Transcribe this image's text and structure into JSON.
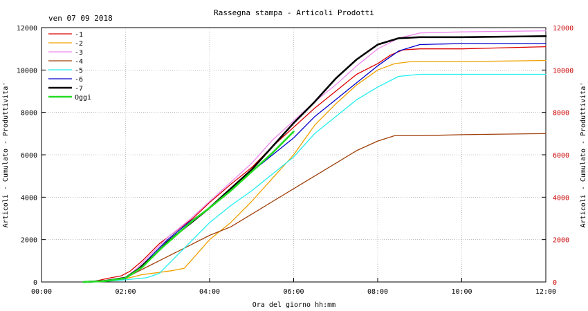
{
  "chart_data": {
    "type": "line",
    "title": "Rassegna stampa - Articoli Prodotti",
    "date_label": "ven 07 09 2018",
    "xlabel": "Ora del giorno hh:mm",
    "ylabel": "Articoli - Cumulato - Produttivita'",
    "ylabel_right": "Articoli - Cumulato - Produttivita'",
    "xlim": [
      0,
      12
    ],
    "ylim": [
      0,
      12000
    ],
    "x_ticks": [
      {
        "value": 0,
        "label": "00:00"
      },
      {
        "value": 2,
        "label": "02:00"
      },
      {
        "value": 4,
        "label": "04:00"
      },
      {
        "value": 6,
        "label": "06:00"
      },
      {
        "value": 8,
        "label": "08:00"
      },
      {
        "value": 10,
        "label": "10:00"
      },
      {
        "value": 12,
        "label": "12:00"
      }
    ],
    "y_ticks": [
      {
        "value": 0,
        "label": "0"
      },
      {
        "value": 2000,
        "label": "2000"
      },
      {
        "value": 4000,
        "label": "4000"
      },
      {
        "value": 6000,
        "label": "6000"
      },
      {
        "value": 8000,
        "label": "8000"
      },
      {
        "value": 10000,
        "label": "10000"
      },
      {
        "value": 12000,
        "label": "12000"
      }
    ],
    "grid": true,
    "legend_position": "top-left",
    "right_axis_color": "#cc0000",
    "series": [
      {
        "name": "-1",
        "color": "#dd0000",
        "width": 1.3,
        "points": [
          [
            1.0,
            0
          ],
          [
            1.3,
            50
          ],
          [
            1.6,
            180
          ],
          [
            1.9,
            290
          ],
          [
            2.1,
            500
          ],
          [
            2.4,
            1000
          ],
          [
            2.8,
            1800
          ],
          [
            3.2,
            2400
          ],
          [
            3.6,
            3000
          ],
          [
            4.0,
            3750
          ],
          [
            4.5,
            4600
          ],
          [
            5.0,
            5400
          ],
          [
            5.5,
            6400
          ],
          [
            6.0,
            7300
          ],
          [
            6.5,
            8200
          ],
          [
            7.0,
            9000
          ],
          [
            7.5,
            9800
          ],
          [
            8.0,
            10300
          ],
          [
            8.3,
            10700
          ],
          [
            8.6,
            10950
          ],
          [
            9.0,
            11000
          ],
          [
            10.0,
            11000
          ],
          [
            11.0,
            11050
          ],
          [
            12.0,
            11100
          ]
        ]
      },
      {
        "name": "-2",
        "color": "#f0a000",
        "width": 1.3,
        "points": [
          [
            1.0,
            0
          ],
          [
            1.5,
            50
          ],
          [
            2.0,
            150
          ],
          [
            2.4,
            350
          ],
          [
            2.8,
            450
          ],
          [
            3.1,
            530
          ],
          [
            3.4,
            650
          ],
          [
            3.6,
            1100
          ],
          [
            4.0,
            2000
          ],
          [
            4.5,
            2800
          ],
          [
            5.0,
            3800
          ],
          [
            5.5,
            4900
          ],
          [
            6.0,
            6000
          ],
          [
            6.5,
            7400
          ],
          [
            7.0,
            8400
          ],
          [
            7.5,
            9300
          ],
          [
            8.0,
            10000
          ],
          [
            8.4,
            10300
          ],
          [
            8.8,
            10400
          ],
          [
            10.0,
            10400
          ],
          [
            12.0,
            10450
          ]
        ]
      },
      {
        "name": "-3",
        "color": "#ee88ee",
        "width": 1.3,
        "points": [
          [
            1.0,
            0
          ],
          [
            1.5,
            60
          ],
          [
            2.0,
            180
          ],
          [
            2.3,
            700
          ],
          [
            2.7,
            1500
          ],
          [
            3.0,
            2100
          ],
          [
            3.5,
            2900
          ],
          [
            4.0,
            3800
          ],
          [
            4.5,
            4700
          ],
          [
            5.0,
            5600
          ],
          [
            5.5,
            6700
          ],
          [
            6.0,
            7600
          ],
          [
            6.5,
            8500
          ],
          [
            7.0,
            9300
          ],
          [
            7.5,
            10200
          ],
          [
            8.0,
            11000
          ],
          [
            8.5,
            11500
          ],
          [
            9.0,
            11750
          ],
          [
            10.0,
            11800
          ],
          [
            12.0,
            11850
          ]
        ]
      },
      {
        "name": "-4",
        "color": "#a0400a",
        "width": 1.3,
        "points": [
          [
            1.0,
            0
          ],
          [
            1.5,
            50
          ],
          [
            2.0,
            200
          ],
          [
            2.5,
            700
          ],
          [
            3.0,
            1200
          ],
          [
            3.5,
            1700
          ],
          [
            4.0,
            2200
          ],
          [
            4.5,
            2600
          ],
          [
            5.0,
            3200
          ],
          [
            5.5,
            3800
          ],
          [
            6.0,
            4400
          ],
          [
            6.5,
            5000
          ],
          [
            7.0,
            5600
          ],
          [
            7.5,
            6200
          ],
          [
            8.0,
            6650
          ],
          [
            8.4,
            6900
          ],
          [
            9.0,
            6900
          ],
          [
            10.0,
            6950
          ],
          [
            12.0,
            7000
          ]
        ]
      },
      {
        "name": "-5",
        "color": "#22eeee",
        "width": 1.3,
        "points": [
          [
            1.0,
            0
          ],
          [
            1.6,
            40
          ],
          [
            2.0,
            100
          ],
          [
            2.5,
            200
          ],
          [
            2.8,
            400
          ],
          [
            3.2,
            1200
          ],
          [
            3.6,
            2000
          ],
          [
            4.0,
            2800
          ],
          [
            4.5,
            3600
          ],
          [
            5.0,
            4300
          ],
          [
            5.5,
            5100
          ],
          [
            6.0,
            5900
          ],
          [
            6.5,
            7000
          ],
          [
            7.0,
            7800
          ],
          [
            7.5,
            8600
          ],
          [
            8.0,
            9200
          ],
          [
            8.5,
            9700
          ],
          [
            9.0,
            9800
          ],
          [
            12.0,
            9800
          ]
        ]
      },
      {
        "name": "-6",
        "color": "#0000cc",
        "width": 1.3,
        "points": [
          [
            1.0,
            0
          ],
          [
            1.5,
            50
          ],
          [
            2.0,
            150
          ],
          [
            2.3,
            600
          ],
          [
            2.7,
            1400
          ],
          [
            3.0,
            2000
          ],
          [
            3.5,
            2800
          ],
          [
            4.0,
            3500
          ],
          [
            4.5,
            4400
          ],
          [
            5.0,
            5200
          ],
          [
            5.5,
            6000
          ],
          [
            6.0,
            6800
          ],
          [
            6.5,
            7800
          ],
          [
            7.0,
            8600
          ],
          [
            7.5,
            9400
          ],
          [
            8.0,
            10200
          ],
          [
            8.5,
            10900
          ],
          [
            9.0,
            11200
          ],
          [
            10.0,
            11250
          ],
          [
            12.0,
            11250
          ]
        ]
      },
      {
        "name": "-7",
        "color": "#000000",
        "width": 2.6,
        "points": [
          [
            1.0,
            0
          ],
          [
            1.5,
            50
          ],
          [
            2.0,
            200
          ],
          [
            2.3,
            600
          ],
          [
            2.7,
            1300
          ],
          [
            3.0,
            1900
          ],
          [
            3.5,
            2700
          ],
          [
            4.0,
            3500
          ],
          [
            4.5,
            4400
          ],
          [
            5.0,
            5300
          ],
          [
            5.5,
            6400
          ],
          [
            6.0,
            7500
          ],
          [
            6.5,
            8500
          ],
          [
            7.0,
            9600
          ],
          [
            7.5,
            10500
          ],
          [
            8.0,
            11200
          ],
          [
            8.5,
            11500
          ],
          [
            9.0,
            11550
          ],
          [
            10.0,
            11550
          ],
          [
            12.0,
            11600
          ]
        ]
      },
      {
        "name": "Oggi",
        "color": "#22dd22",
        "width": 2.6,
        "points": [
          [
            1.0,
            0
          ],
          [
            1.5,
            40
          ],
          [
            2.0,
            180
          ],
          [
            2.4,
            700
          ],
          [
            2.8,
            1500
          ],
          [
            3.2,
            2200
          ],
          [
            3.6,
            2900
          ],
          [
            4.0,
            3500
          ],
          [
            4.5,
            4300
          ],
          [
            5.0,
            5200
          ],
          [
            5.5,
            6100
          ],
          [
            6.0,
            7100
          ]
        ]
      }
    ]
  }
}
